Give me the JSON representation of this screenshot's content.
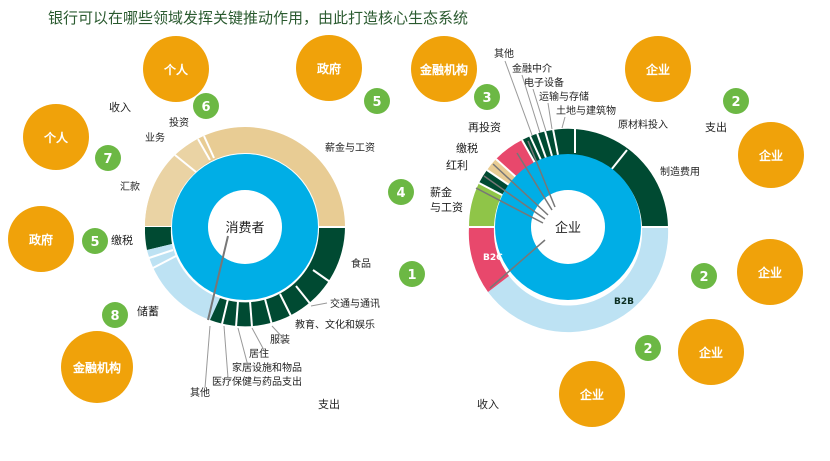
{
  "title": "银行可以在哪些领域发挥关键推动作用，由此打造核心生态系统",
  "colors": {
    "orange": "#f0a20a",
    "green_badge": "#6cb844",
    "dark_green": "#004a32",
    "cyan": "#00aee6",
    "light_blue": "#bde2f3",
    "tan": "#e8cc94",
    "pink": "#e8486c",
    "lime": "#8fc548"
  },
  "consumer": {
    "center_label": "消费者",
    "income_label": "收入",
    "expense_label": "支出",
    "segments": {
      "salary": "薪金与工资",
      "business": "业务",
      "investment": "投资",
      "remittance": "汇款",
      "tax": "缴税",
      "savings": "储蓄",
      "food": "食品",
      "transport": "交通与通讯",
      "education": "教育、文化和娱乐",
      "clothing": "服装",
      "housing": "居住",
      "furnishing": "家居设施和物品",
      "health": "医疗保健与药品支出",
      "other": "其他"
    }
  },
  "enterprise": {
    "center_label": "企业",
    "income_label": "收入",
    "expense_label": "支出",
    "segments": {
      "other": "其他",
      "financial_intermediary": "金融中介",
      "electronics": "电子设备",
      "transport_storage": "运输与存储",
      "land_construction": "土地与建筑物",
      "raw_materials": "原材料投入",
      "manufacturing": "制造费用",
      "reinvest": "再投资",
      "tax": "缴税",
      "dividend": "红利",
      "salary": "薪金\n与工资",
      "b2c": "B2C",
      "b2b": "B2B"
    }
  },
  "actors": {
    "individual": "个人",
    "government": "政府",
    "financial_institution": "金融机构",
    "enterprise": "企业"
  },
  "badges": [
    "1",
    "2",
    "3",
    "4",
    "5",
    "6",
    "7",
    "8"
  ]
}
